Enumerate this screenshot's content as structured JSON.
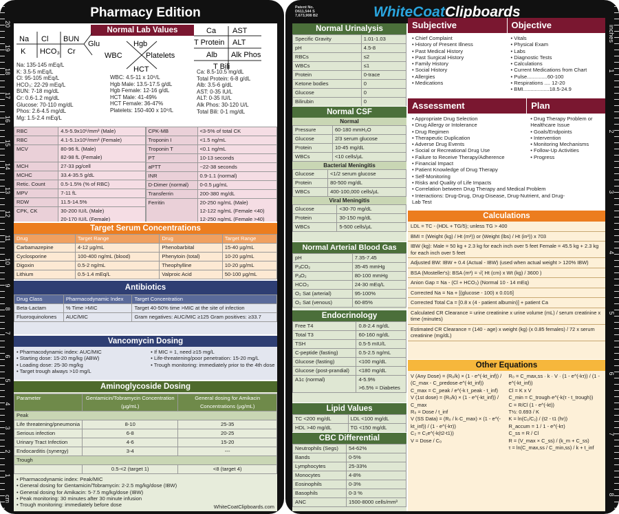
{
  "left": {
    "title": "Pharmacy Edition",
    "normal_lab": {
      "header": "Normal Lab Values",
      "bmp_left": [
        "Na: 135-145 mEq/L",
        "K: 3.5-5 mEq/L",
        "Cl: 95-105 mEq/L",
        "HCO₃: 22-29 mEq/L",
        "BUN: 7-18 mg/dL",
        "Cr: 0.6-1.2 mg/dL",
        "Glucose: 70-110 mg/dL",
        "Phos: 2.6-4.5 mg/dL",
        "Mg: 1.5-2.4 mEq/L"
      ],
      "cbc_mid": [
        "WBC: 4.5-11 x 10⁹/L",
        "Hgb Male: 13.5-17.5 g/dL",
        "Hgb Female: 12-16 g/dL",
        "HCT Male: 41-49%",
        "HCT Female: 36-47%",
        "Platelets: 150-400 x 10⁹/L"
      ],
      "lft_right": [
        "Ca: 8.5-10.5 mg/dL",
        "Total Protein: 6-8 g/dL",
        "Alb: 3.5-6 g/dL",
        "AST: 0-35 IU/L",
        "ALT: 0-35 IU/L",
        "Alk Phos: 30-120 U/L",
        "Total Bili: 0-1 mg/dL"
      ],
      "fish_bmp": [
        "Na",
        "Cl",
        "BUN",
        "K",
        "HCO₃",
        "Cr",
        "Glu"
      ],
      "fish_cbc": [
        "Hgb",
        "WBC",
        "Platelets",
        "HCT"
      ],
      "fish_lft": [
        "Ca",
        "AST",
        "T Protein",
        "ALT",
        "Alb",
        "Alk Phos",
        "T Bili"
      ]
    },
    "lab_table_left": [
      [
        "RBC",
        "4.5-5.9x10⁶/mm³ (Male)"
      ],
      [
        "RBC",
        "4.1-5.1x10⁶/mm³ (Female)"
      ],
      [
        "MCV",
        "80-96 fL (Male)\n82-98 fL (Female)"
      ],
      [
        "MCH",
        "27-33 pg/cell"
      ],
      [
        "MCHC",
        "33.4-35.5 g/dL"
      ],
      [
        "Retic. Count",
        "0.5-1.5% (% of RBC)"
      ],
      [
        "MPV",
        "7-11 fL"
      ],
      [
        "RDW",
        "11.5-14.5%"
      ],
      [
        "CPK, CK",
        "30-200 IU/L (Male)\n20-170 IU/L (Female)"
      ]
    ],
    "lab_table_right": [
      [
        "CPK-MB",
        "<3-5% of total CK"
      ],
      [
        "Troponin I",
        "<1.5 ng/mL"
      ],
      [
        "Troponin T",
        "<0.1 ng/mL"
      ],
      [
        "PT",
        "10-13 seconds"
      ],
      [
        "aPTT",
        "~22-38 seconds"
      ],
      [
        "INR",
        "0.9-1.1 (normal)"
      ],
      [
        "D-Dimer (normal)",
        "0-0.5 µg/mL"
      ],
      [
        "Transferrin",
        "200-380 mg/dL"
      ],
      [
        "Ferritin",
        "20-250 ng/mL (Male)\n12-122 ng/mL (Female <40)\n12-250 ng/mL (Female >40)"
      ]
    ],
    "target_serum": {
      "header": "Target Serum Concentrations",
      "cols": [
        "Drug",
        "Target Range",
        "Drug",
        "Target Range"
      ],
      "rows": [
        [
          "Carbamazepine",
          "4-12 µg/mL",
          "Phenobarbital",
          "15-40 µg/mL"
        ],
        [
          "Cyclosporine",
          "100-400 ng/mL (blood)",
          "Phenytoin (total)",
          "10-20 µg/mL"
        ],
        [
          "Digoxin",
          "0.5-2 ng/mL",
          "Theophylline",
          "10-20 µg/mL"
        ],
        [
          "Lithium",
          "0.5-1.4 mEq/L",
          "Valproic Acid",
          "50-100 µg/mL"
        ]
      ]
    },
    "antibiotics": {
      "header": "Antibiotics",
      "cols": [
        "Drug Class",
        "Pharmacodynamic Index",
        "Target Concentration"
      ],
      "rows": [
        [
          "Beta-Lactam",
          "% Time >MIC",
          "Target 40-50% time >MIC at the site of infection"
        ],
        [
          "Fluoroquinolones",
          "AUC/MIC",
          "Gram negatives: AUC/MIC ≥125 Gram positives: ≥33.7"
        ]
      ]
    },
    "vanco": {
      "header": "Vancomycin Dosing",
      "left": [
        "Pharmacodynamic index: AUC/MIC",
        "Starting dose: 15-20 mg/kg (ABW)",
        "Loading dose: 25-30 mg/kg",
        "Target trough always >10 mg/L"
      ],
      "right": [
        "If MIC = 1, need ≥15 mg/L",
        "Life-threatening/poor penetration: 15-20 mg/L",
        "Trough monitoring: immediately prior to the 4th dose"
      ]
    },
    "amino": {
      "header": "Aminoglycoside Dosing",
      "cols": [
        "Parameter",
        "Gentamicin/Tobramycin Concentration (µg/mL)",
        "General dosing for Amikacin Concentrations (µg/mL)"
      ],
      "peak_label": "Peak",
      "trough_label": "Trough",
      "peak_rows": [
        [
          "Life threatening/pneumonia",
          "8-10",
          "25-35"
        ],
        [
          "Serious infection",
          "6-8",
          "20-25"
        ],
        [
          "Urinary Tract Infection",
          "4-6",
          "15-20"
        ],
        [
          "Endocarditis (synergy)",
          "3-4",
          "---"
        ]
      ],
      "trough_row": [
        "",
        "0.5-<2 (target 1)",
        "<8 (target 4)"
      ],
      "notes": [
        "Pharmacodynamic index: Peak/MIC",
        "General dosing for Gentamicin/Tobramycin: 2-2.5 mg/kg/dose (IBW)",
        "General dosing for Amikacin: 5-7.5 mg/kg/dose (IBW)",
        "Peak monitoring: 30 minutes after 30 minute infusion",
        "Trough monitoring: immediately before dose"
      ],
      "footer": "WhiteCoatClipboards.com"
    }
  },
  "right": {
    "brand1": "WhiteCoat",
    "brand2": "Clipboards",
    "patent": "Patent No. D611,544 S 7,673,908 B2",
    "ruler_label": "inches",
    "urinalysis": {
      "header": "Normal Urinalysis",
      "rows": [
        [
          "Specific Gravity",
          "1.01-1.03"
        ],
        [
          "pH",
          "4.5-8"
        ],
        [
          "RBCs",
          "≤2"
        ],
        [
          "WBCs",
          "≤1"
        ],
        [
          "Protein",
          "0-trace"
        ],
        [
          "Ketone bodies",
          "0"
        ],
        [
          "Glucose",
          "0"
        ],
        [
          "Bilirubin",
          "0"
        ]
      ]
    },
    "csf": {
      "header": "Normal CSF",
      "normal_label": "Normal",
      "normal": [
        [
          "Pressure",
          "60-180 mmH₂O"
        ],
        [
          "Glucose",
          "2/3 serum glucose"
        ],
        [
          "Protein",
          "10-45 mg/dL"
        ],
        [
          "WBCs",
          "<10 cells/µL"
        ]
      ],
      "bact_label": "Bacterial Meningitis",
      "bact": [
        [
          "Glucose",
          "<1/2 serum glucose"
        ],
        [
          "Protein",
          "80-500 mg/dL"
        ],
        [
          "WBCs",
          "400-100,000 cells/µL"
        ]
      ],
      "viral_label": "Viral Meningitis",
      "viral": [
        [
          "Glucose",
          "<30-70 mg/dL"
        ],
        [
          "Protein",
          "30-150 mg/dL"
        ],
        [
          "WBCs",
          "5-500 cells/µL"
        ]
      ]
    },
    "abg": {
      "header": "Normal Arterial Blood Gas",
      "rows": [
        [
          "pH",
          "7.35-7.45"
        ],
        [
          "PₐCO₂",
          "35-45 mmHg"
        ],
        [
          "PₐO₂",
          "80-100 mmHg"
        ],
        [
          "HCO₃",
          "24-30 mEq/L"
        ],
        [
          "O₂ Sat (arterial)",
          "95-100%"
        ],
        [
          "O₂ Sat (venous)",
          "60-85%"
        ]
      ]
    },
    "endo": {
      "header": "Endocrinology",
      "rows": [
        [
          "Free T4",
          "0.8-2.4 ng/dL"
        ],
        [
          "Total T3",
          "60-160 ng/dL"
        ],
        [
          "TSH",
          "0.5-5 mIU/L"
        ],
        [
          "C-peptide (fasting)",
          "0.5-2.5 ng/mL"
        ],
        [
          "Glucose (fasting)",
          "<100 mg/dL"
        ],
        [
          "Glucose (post-prandial)",
          "<180 mg/dL"
        ],
        [
          "A1c (normal)",
          "4-5.9%\n>6.5% = Diabetes"
        ]
      ]
    },
    "lipid": {
      "header": "Lipid Values",
      "rows": [
        [
          "TC <200 mg/dL",
          "LDL <100 mg/dL"
        ],
        [
          "HDL >40 mg/dL",
          "TG <150 mg/dL"
        ]
      ]
    },
    "cbc": {
      "header": "CBC Differential",
      "rows": [
        [
          "Neutrophils (Segs)",
          "54-62%"
        ],
        [
          "Bands",
          "0-5%"
        ],
        [
          "Lymphocytes",
          "25-33%"
        ],
        [
          "Monocytes",
          "4-8%"
        ],
        [
          "Eosinophils",
          "0-3%"
        ],
        [
          "Basophils",
          "0-3 %"
        ],
        [
          "ANC",
          "1500-8000 cells/mm³"
        ]
      ]
    },
    "subjective": {
      "header": "Subjective",
      "items": [
        "Chief Complaint",
        "History of Present Illness",
        "Past Medical History",
        "Past Surgical History",
        "Family History",
        "Social History",
        "Allergies",
        "Medications"
      ]
    },
    "objective": {
      "header": "Objective",
      "items": [
        "Vitals",
        "Physical Exam",
        "Labs",
        "Diagnostic Tests",
        "Calculations",
        "Current Medications from Chart",
        "Pulse..............60-100",
        "Respirations .... 12-20",
        "BMI..................18.5-24.9"
      ]
    },
    "assessment": {
      "header": "Assessment",
      "items": [
        "Appropriate Drug Selection",
        "Drug Allergy or Intolerance",
        "Drug Regimen",
        "Therapeutic Duplication",
        "Adverse Drug Events",
        "Social or Recreational Drug Use",
        "Failure to Receive Therapy/Adherence",
        "Financial Impact",
        "Patient Knowledge of Drug Therapy",
        "Self-Monitoring",
        "Risks and Quality of Life Impacts",
        "Correlation between Drug Therapy and Medical Problem",
        "Interactions: Drug-Drug, Drug-Disease, Drug-Nutrient, and Drug-Lab Test"
      ]
    },
    "plan": {
      "header": "Plan",
      "items": [
        "Drug Therapy Problem or Healthcare Issue",
        "Goals/Endpoints",
        "Intervention",
        "Monitoring Mechanisms",
        "Follow-Up Activities",
        "Progress"
      ]
    },
    "calculations": {
      "header": "Calculations",
      "rows": [
        "LDL = TC - (HDL + TG/5); unless TG > 400",
        "BMI = (Weight (kg) / Ht (m²)) or (Weight (lbs) / Ht (in²)) x 703",
        "IBW (kg): Male = 50 kg + 2.3 kg for each inch over 5 feet   Female = 45.5 kg + 2.3 kg for each inch over 5 feet",
        "Adjusted BW: IBW + 0.4 (Actual - IBW) (used when actual weight > 120% IBW)",
        "BSA (Mosteller's): BSA (m²) = √( Ht (cm) x Wt (kg) / 3600 )",
        "Anion Gap = Na - (Cl + HCO₃) (Normal 10 - 14 mEq)",
        "Corrected Na = Na + [(glucose - 100) x 0.016]",
        "Corrected Total Ca = [0.8 x (4 - patient albumin)] + patient Ca",
        "Calculated CR Clearance = urine creatinine x urine volume (mL) / serum creatinine x time (minutes)",
        "Estimated CR Clearance = (140 - age) x weight (kg) (x 0.85 females) / 72 x serum creatinine (mg/dL)"
      ]
    },
    "equations": {
      "header": "Other Equations",
      "items": [
        "V (Any Dose) = (R₀/k) × (1 - e^(-kt_inf)) / (C_max - C_predose·e^(-kt_inf))",
        "C_max = C_peak / e^(-k t_peak - t_inf)",
        "V (1st dose) = (R₀/k) × (1 - e^(-kt_inf)) / C_max",
        "R₀ = Dose / t_inf",
        "V (SS Data) = (R₀ / k·C_max) × (1 - e^(-kt_inf)) / (1 - e^(-kτ))",
        "C₂ = C₁e^(-k(t2-t1))",
        "V = Dose / C₀",
        "R₀ = C_max,ss · k · V · (1 - e^(-kτ)) / (1 - e^(-kt_inf))",
        "Cl = K x V",
        "C_min = C_trough·e^(-k(τ - t_trough))",
        "C = R/Cl (1 - e^(-kt))",
        "T½: 0.693 / K",
        "K = ln(C₁/C₂) / (t2 - t1 (hr))",
        "R_accum = 1 / 1 - e^(-kτ)",
        "C_ss = R / Cl",
        "R = (V_max × C_ss) / (k_m + C_ss)",
        "τ = ln(C_max,ss / C_min,ss) / k + t_inf"
      ]
    }
  },
  "ruler_left_cm": [
    "20",
    "19",
    "18",
    "17",
    "16",
    "15",
    "14",
    "13",
    "12",
    "11",
    "10",
    "9",
    "8",
    "7",
    "6",
    "5",
    "4",
    "3",
    "2",
    "1",
    "cm"
  ],
  "ruler_right_in": [
    "1",
    "2",
    "3",
    "4",
    "5",
    "6",
    "7",
    "8"
  ]
}
